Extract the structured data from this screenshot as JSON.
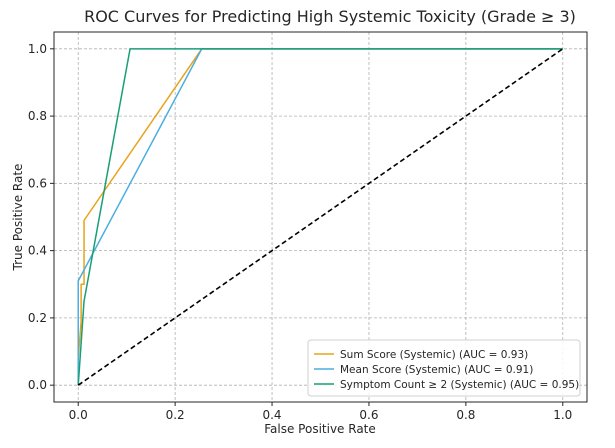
{
  "chart_data": {
    "type": "line",
    "title": "ROC Curves for Predicting High Systemic Toxicity (Grade ≥ 3)",
    "xlabel": "False Positive Rate",
    "ylabel": "True Positive Rate",
    "xlim": [
      -0.05,
      1.05
    ],
    "ylim": [
      -0.05,
      1.05
    ],
    "xticks": [
      0.0,
      0.2,
      0.4,
      0.6,
      0.8,
      1.0
    ],
    "yticks": [
      0.0,
      0.2,
      0.4,
      0.6,
      0.8,
      1.0
    ],
    "xtick_labels": [
      "0.0",
      "0.2",
      "0.4",
      "0.6",
      "0.8",
      "1.0"
    ],
    "ytick_labels": [
      "0.0",
      "0.2",
      "0.4",
      "0.6",
      "0.8",
      "1.0"
    ],
    "grid": true,
    "legend_position": "lower-right",
    "series": [
      {
        "name": "Sum Score (Systemic) (AUC = 0.93)",
        "color": "#e8a31b",
        "style": "solid",
        "x": [
          0.0,
          0.0,
          0.006,
          0.006,
          0.012,
          0.012,
          0.255,
          1.0
        ],
        "y": [
          0.0,
          0.08,
          0.19,
          0.3,
          0.3,
          0.49,
          1.0,
          1.0
        ]
      },
      {
        "name": "Mean Score (Systemic) (AUC = 0.91)",
        "color": "#4aaee0",
        "style": "solid",
        "x": [
          0.0,
          0.0,
          0.255,
          1.0
        ],
        "y": [
          0.0,
          0.31,
          1.0,
          1.0
        ]
      },
      {
        "name": "Symptom Count ≥ 2 (Systemic) (AUC = 0.95)",
        "color": "#1a9e77",
        "style": "solid",
        "x": [
          0.0,
          0.012,
          0.107,
          1.0
        ],
        "y": [
          0.0,
          0.25,
          1.0,
          1.0
        ]
      },
      {
        "name": "",
        "color": "#000000",
        "style": "dashed",
        "x": [
          0.0,
          1.0
        ],
        "y": [
          0.0,
          1.0
        ]
      }
    ]
  }
}
